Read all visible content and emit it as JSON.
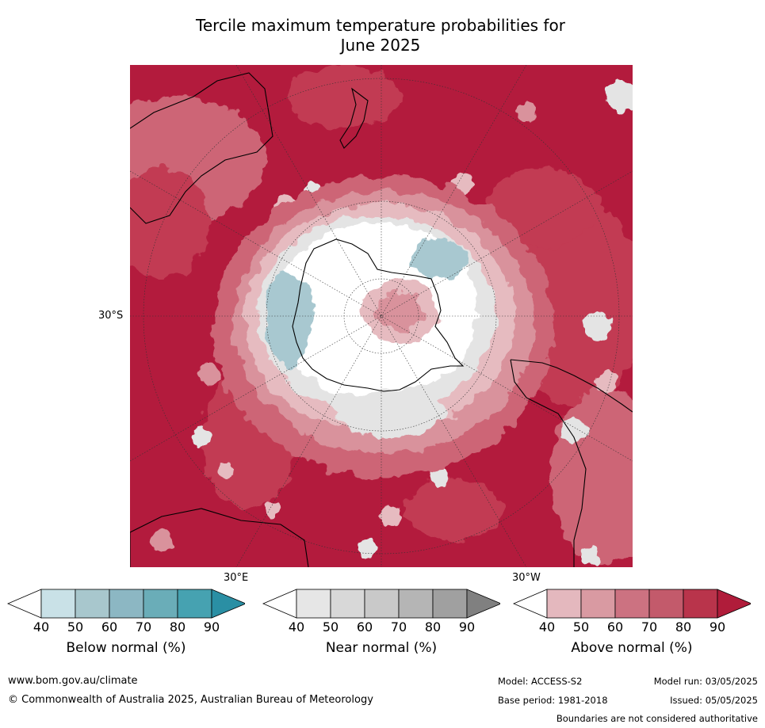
{
  "title_line1": "Tercile maximum temperature probabilities for",
  "title_line2": "June 2025",
  "map": {
    "projection": "south polar stereographic",
    "graticule_labels": {
      "lat": "30°S",
      "lon_east": "30°E",
      "lon_west": "30°W"
    },
    "colors": {
      "above_90": "#b31b3d",
      "above_80": "#c23a52",
      "above_70": "#cd6576",
      "above_60": "#d9929c",
      "above_50": "#e6bbc0",
      "near": "#e4e4e4",
      "below_50": "#a8c8d0",
      "below_60": "#8fb8c4",
      "white": "#ffffff"
    }
  },
  "colorbars": [
    {
      "label": "Below normal (%)",
      "ticks": [
        "40",
        "50",
        "60",
        "70",
        "80",
        "90"
      ],
      "colors": [
        "#c9e1e7",
        "#a8c7cd",
        "#8cb7c3",
        "#6aadb8",
        "#46a2b1",
        "#2a8fa4"
      ]
    },
    {
      "label": "Near normal (%)",
      "ticks": [
        "40",
        "50",
        "60",
        "70",
        "80",
        "90"
      ],
      "colors": [
        "#e6e6e6",
        "#d8d8d8",
        "#c9c9c9",
        "#b5b5b5",
        "#a0a0a0",
        "#808080"
      ]
    },
    {
      "label": "Above normal (%)",
      "ticks": [
        "40",
        "50",
        "60",
        "70",
        "80",
        "90"
      ],
      "colors": [
        "#e4b8be",
        "#d99aa2",
        "#cc7281",
        "#c35a6b",
        "#b9344b",
        "#b01c3a"
      ]
    }
  ],
  "footer": {
    "url": "www.bom.gov.au/climate",
    "copyright": "© Commonwealth of Australia 2025, Australian Bureau of Meteorology",
    "model": "Model: ACCESS-S2",
    "model_run": "Model run: 03/05/2025",
    "base_period": "Base period: 1981-2018",
    "issued": "Issued: 05/05/2025",
    "disclaimer": "Boundaries are not considered authoritative"
  }
}
